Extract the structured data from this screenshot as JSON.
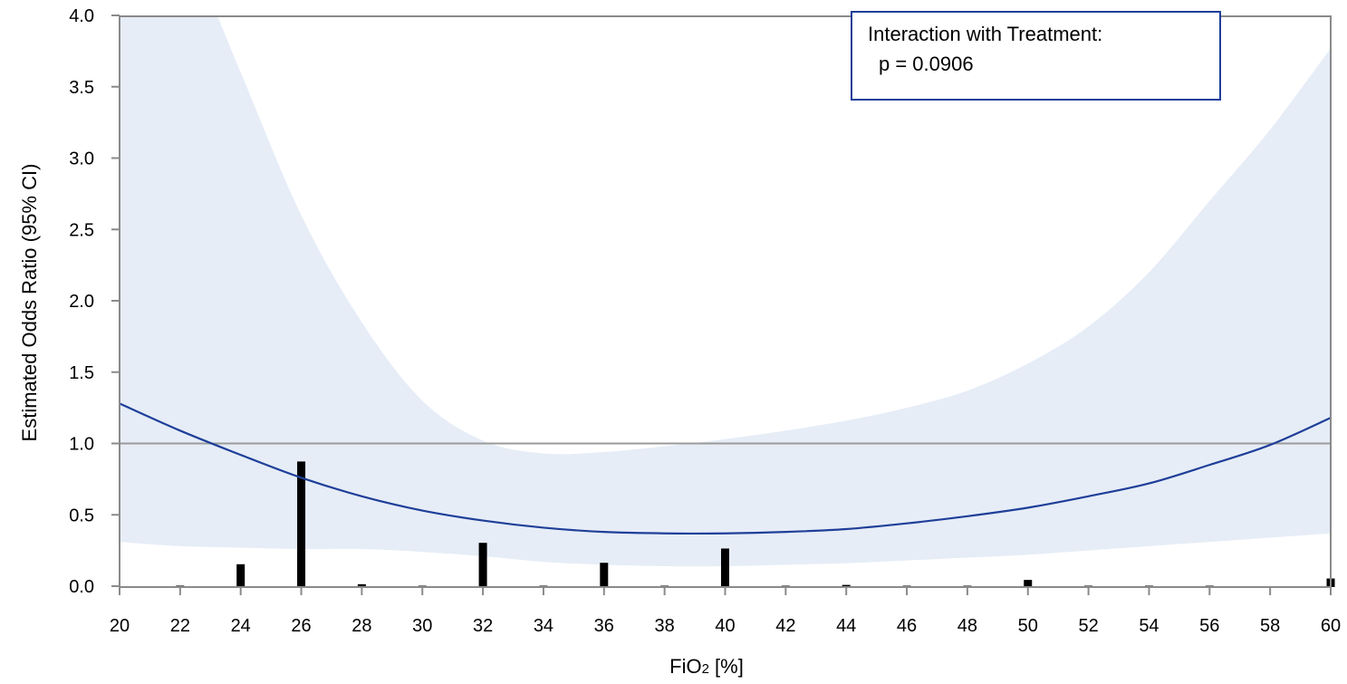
{
  "chart_data": {
    "type": "line",
    "xlabel": "FiO2 [%]",
    "xlabel_main": "FiO",
    "xlabel_sub": "2",
    "xlabel_rest": " [%]",
    "ylabel": "Estimated Odds Ratio (95% CI)",
    "xlim": [
      20,
      60
    ],
    "ylim": [
      -0.05,
      4.05
    ],
    "x_ticks": [
      20,
      22,
      24,
      26,
      28,
      30,
      32,
      34,
      36,
      38,
      40,
      42,
      44,
      46,
      48,
      50,
      52,
      54,
      56,
      58,
      60
    ],
    "x_tick_labels": [
      "20",
      "22",
      "24",
      "26",
      "28",
      "30",
      "32",
      "34",
      "36",
      "38",
      "40",
      "42",
      "44",
      "46",
      "48",
      "50",
      "52",
      "54",
      "56",
      "58",
      "60"
    ],
    "y_ticks": [
      0.0,
      0.5,
      1.0,
      1.5,
      2.0,
      2.5,
      3.0,
      3.5,
      4.0
    ],
    "y_tick_labels": [
      "0.0",
      "0.5",
      "1.0",
      "1.5",
      "2.0",
      "2.5",
      "3.0",
      "3.5",
      "4.0"
    ],
    "reference_line": 1.0,
    "annotation": {
      "line1": "Interaction with Treatment:",
      "line2": "p = 0.0906"
    },
    "series": [
      {
        "x": [
          20,
          22,
          24,
          26,
          28,
          30,
          32,
          34,
          36,
          38,
          40,
          42,
          44,
          46,
          48,
          50,
          52,
          54,
          56,
          58,
          60
        ],
        "y": [
          1.28,
          1.09,
          0.92,
          0.76,
          0.63,
          0.53,
          0.46,
          0.41,
          0.38,
          0.37,
          0.37,
          0.38,
          0.4,
          0.44,
          0.49,
          0.55,
          0.63,
          0.72,
          0.85,
          0.99,
          1.18
        ],
        "lower": [
          0.31,
          0.28,
          0.27,
          0.26,
          0.26,
          0.24,
          0.21,
          0.17,
          0.15,
          0.14,
          0.14,
          0.15,
          0.16,
          0.18,
          0.2,
          0.22,
          0.25,
          0.28,
          0.31,
          0.34,
          0.37
        ],
        "upper": [
          5.3,
          4.6,
          3.6,
          2.6,
          1.85,
          1.3,
          1.02,
          0.93,
          0.94,
          0.98,
          1.03,
          1.09,
          1.16,
          1.25,
          1.37,
          1.56,
          1.82,
          2.2,
          2.7,
          3.2,
          3.77
        ]
      }
    ],
    "histogram": {
      "x": [
        22,
        24,
        26,
        28,
        30,
        32,
        34,
        36,
        38,
        40,
        42,
        44,
        46,
        48,
        50,
        52,
        54,
        56,
        60
      ],
      "y": [
        0.01,
        0.16,
        0.88,
        0.02,
        0.005,
        0.31,
        0.005,
        0.17,
        0.005,
        0.27,
        0.003,
        0.015,
        0.003,
        0.003,
        0.05,
        0.008,
        0.003,
        0.008,
        0.06
      ]
    },
    "colors": {
      "curve": "#1f3f99",
      "band": "#e6edf7",
      "reference": "#9a9a9a",
      "bars": "#000000",
      "axis": "#8a8a8a",
      "annotation_border": "#1f3f99"
    }
  }
}
